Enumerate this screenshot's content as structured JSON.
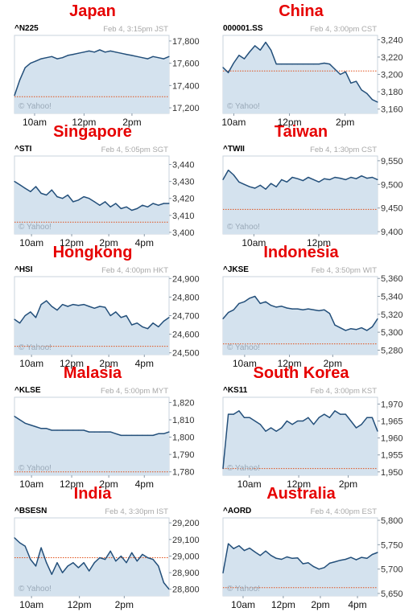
{
  "chart_data": [
    {
      "type": "area",
      "title": "Japan",
      "symbol": "^N225",
      "timestamp": "Feb 4, 3:15pm JST",
      "watermark": "© Yahoo!",
      "yticks": [
        "17,800",
        "17,600",
        "17,400",
        "17,200"
      ],
      "ytick_values": [
        17800,
        17600,
        17400,
        17200
      ],
      "ylim": [
        17150,
        17850
      ],
      "xticks": [
        "10am",
        "12pm",
        "2pm"
      ],
      "xtick_pos": [
        0.13,
        0.45,
        0.76
      ],
      "baseline": 17300,
      "y": [
        17310,
        17450,
        17560,
        17600,
        17620,
        17640,
        17650,
        17660,
        17640,
        17650,
        17670,
        17680,
        17690,
        17700,
        17710,
        17700,
        17720,
        17700,
        17710,
        17700,
        17690,
        17680,
        17670,
        17660,
        17650,
        17640,
        17660,
        17650,
        17640,
        17660
      ]
    },
    {
      "type": "area",
      "title": "China",
      "symbol": "000001.SS",
      "timestamp": "Feb 4, 3:00pm CST",
      "watermark": "© Yahoo!",
      "yticks": [
        "3,240",
        "3,220",
        "3,200",
        "3,180",
        "3,160"
      ],
      "ytick_values": [
        3240,
        3220,
        3200,
        3180,
        3160
      ],
      "ylim": [
        3155,
        3245
      ],
      "xticks": [
        "10am",
        "12pm",
        "2pm"
      ],
      "xtick_pos": [
        0.07,
        0.43,
        0.79
      ],
      "baseline": 3204,
      "y": [
        3208,
        3202,
        3213,
        3222,
        3218,
        3226,
        3233,
        3228,
        3237,
        3228,
        3212,
        3212,
        3212,
        3212,
        3212,
        3212,
        3212,
        3212,
        3212,
        3213,
        3212,
        3206,
        3200,
        3203,
        3190,
        3192,
        3182,
        3178,
        3171,
        3168
      ]
    },
    {
      "type": "area",
      "title": "Singapore",
      "symbol": "^STI",
      "timestamp": "Feb 4, 5:05pm SGT",
      "watermark": "© Yahoo!",
      "yticks": [
        "3,440",
        "3,430",
        "3,420",
        "3,410",
        "3,400"
      ],
      "ytick_values": [
        3440,
        3430,
        3420,
        3410,
        3400
      ],
      "ylim": [
        3399,
        3445
      ],
      "xticks": [
        "10am",
        "12pm",
        "2pm",
        "4pm"
      ],
      "xtick_pos": [
        0.11,
        0.37,
        0.61,
        0.84
      ],
      "baseline": 3406,
      "y": [
        3430,
        3428,
        3426,
        3424,
        3427,
        3423,
        3422,
        3425,
        3421,
        3420,
        3422,
        3418,
        3419,
        3421,
        3420,
        3418,
        3416,
        3418,
        3415,
        3417,
        3414,
        3415,
        3413,
        3414,
        3416,
        3415,
        3417,
        3416,
        3417,
        3417
      ]
    },
    {
      "type": "area",
      "title": "Taiwan",
      "symbol": "^TWII",
      "timestamp": "Feb 4, 1:30pm CST",
      "watermark": "© Yahoo!",
      "yticks": [
        "9,550",
        "9,500",
        "9,450",
        "9,400"
      ],
      "ytick_values": [
        9550,
        9500,
        9450,
        9400
      ],
      "ylim": [
        9395,
        9560
      ],
      "xticks": [
        "10am",
        "12pm"
      ],
      "xtick_pos": [
        0.2,
        0.62
      ],
      "baseline": 9447,
      "y": [
        9510,
        9530,
        9520,
        9505,
        9500,
        9495,
        9492,
        9498,
        9490,
        9502,
        9495,
        9510,
        9505,
        9515,
        9512,
        9508,
        9515,
        9510,
        9505,
        9512,
        9510,
        9515,
        9513,
        9510,
        9515,
        9512,
        9518,
        9513,
        9515,
        9510
      ]
    },
    {
      "type": "area",
      "title": "Hongkong",
      "symbol": "^HSI",
      "timestamp": "Feb 4, 4:00pm HKT",
      "watermark": "© Yahoo!",
      "yticks": [
        "24,900",
        "24,800",
        "24,700",
        "24,600",
        "24,500"
      ],
      "ytick_values": [
        24900,
        24800,
        24700,
        24600,
        24500
      ],
      "ylim": [
        24490,
        24910
      ],
      "xticks": [
        "10am",
        "12pm",
        "2pm",
        "4pm"
      ],
      "xtick_pos": [
        0.11,
        0.37,
        0.61,
        0.84
      ],
      "baseline": 24535,
      "y": [
        24680,
        24660,
        24700,
        24720,
        24690,
        24760,
        24780,
        24750,
        24730,
        24760,
        24750,
        24760,
        24755,
        24760,
        24750,
        24740,
        24750,
        24745,
        24700,
        24720,
        24690,
        24700,
        24650,
        24660,
        24640,
        24630,
        24660,
        24640,
        24670,
        24690
      ]
    },
    {
      "type": "area",
      "title": "Indonesia",
      "symbol": "^JKSE",
      "timestamp": "Feb 4, 3:50pm WIT",
      "watermark": "© Yahoo!",
      "yticks": [
        "5,360",
        "5,340",
        "5,320",
        "5,300",
        "5,280"
      ],
      "ytick_values": [
        5360,
        5340,
        5320,
        5300,
        5280
      ],
      "ylim": [
        5275,
        5362
      ],
      "xticks": [
        "10am",
        "12pm",
        "2pm"
      ],
      "xtick_pos": [
        0.14,
        0.43,
        0.71
      ],
      "baseline": 5287,
      "y": [
        5315,
        5322,
        5325,
        5332,
        5334,
        5338,
        5340,
        5332,
        5334,
        5330,
        5328,
        5329,
        5327,
        5326,
        5326,
        5325,
        5326,
        5325,
        5324,
        5325,
        5321,
        5308,
        5305,
        5302,
        5304,
        5303,
        5305,
        5302,
        5306,
        5315
      ]
    },
    {
      "type": "area",
      "title": "Malasia",
      "symbol": "^KLSE",
      "timestamp": "Feb 4, 5:00pm MYT",
      "watermark": "© Yahoo!",
      "yticks": [
        "1,820",
        "1,810",
        "1,800",
        "1,790",
        "1,780"
      ],
      "ytick_values": [
        1820,
        1810,
        1800,
        1790,
        1780
      ],
      "ylim": [
        1778,
        1823
      ],
      "xticks": [
        "10am",
        "12pm",
        "2pm",
        "4pm"
      ],
      "xtick_pos": [
        0.11,
        0.37,
        0.61,
        0.84
      ],
      "baseline": 1780,
      "y": [
        1812,
        1810,
        1808,
        1807,
        1806,
        1805,
        1805,
        1804,
        1804,
        1804,
        1804,
        1804,
        1804,
        1804,
        1803,
        1803,
        1803,
        1803,
        1803,
        1802,
        1801,
        1801,
        1801,
        1801,
        1801,
        1801,
        1801,
        1802,
        1802,
        1803
      ]
    },
    {
      "type": "area",
      "title": "South Korea",
      "symbol": "^KS11",
      "timestamp": "Feb 4, 3:00pm KST",
      "watermark": "© Yahoo!",
      "yticks": [
        "1,970",
        "1,965",
        "1,960",
        "1,955",
        "1,950"
      ],
      "ytick_values": [
        1970,
        1965,
        1960,
        1955,
        1950
      ],
      "ylim": [
        1949,
        1972
      ],
      "xticks": [
        "10am",
        "12pm",
        "2pm"
      ],
      "xtick_pos": [
        0.17,
        0.49,
        0.81
      ],
      "baseline": 1951,
      "y": [
        1951,
        1967,
        1967,
        1968,
        1966,
        1966,
        1965,
        1964,
        1962,
        1963,
        1962,
        1963,
        1965,
        1964,
        1965,
        1965,
        1966,
        1964,
        1966,
        1967,
        1966,
        1968,
        1967,
        1967,
        1965,
        1963,
        1964,
        1966,
        1966,
        1962
      ]
    },
    {
      "type": "area",
      "title": "India",
      "symbol": "^BSESN",
      "timestamp": "Feb 4, 3:30pm IST",
      "watermark": "© Yahoo!",
      "yticks": [
        "29,200",
        "29,100",
        "29,000",
        "28,900",
        "28,800"
      ],
      "ytick_values": [
        29200,
        29100,
        29000,
        28900,
        28800
      ],
      "ylim": [
        28760,
        29230
      ],
      "xticks": [
        "10am",
        "12pm",
        "2pm"
      ],
      "xtick_pos": [
        0.11,
        0.42,
        0.71
      ],
      "baseline": 28990,
      "y": [
        29110,
        29080,
        29060,
        28980,
        28940,
        29050,
        28960,
        28890,
        28960,
        28900,
        28940,
        28960,
        28930,
        28960,
        28910,
        28960,
        28990,
        28980,
        29030,
        28970,
        29000,
        28960,
        29020,
        28970,
        29010,
        28990,
        28980,
        28940,
        28840,
        28800
      ]
    },
    {
      "type": "area",
      "title": "Australia",
      "symbol": "^AORD",
      "timestamp": "Feb 4, 4:00pm EST",
      "watermark": "© Yahoo!",
      "yticks": [
        "5,800",
        "5,750",
        "5,700",
        "5,650"
      ],
      "ytick_values": [
        5800,
        5750,
        5700,
        5650
      ],
      "ylim": [
        5645,
        5805
      ],
      "xticks": [
        "10am",
        "12pm",
        "2pm",
        "4pm"
      ],
      "xtick_pos": [
        0.13,
        0.39,
        0.63,
        0.87
      ],
      "baseline": 5662,
      "y": [
        5692,
        5752,
        5742,
        5748,
        5738,
        5743,
        5735,
        5728,
        5737,
        5728,
        5722,
        5720,
        5725,
        5722,
        5723,
        5711,
        5713,
        5705,
        5700,
        5703,
        5712,
        5715,
        5718,
        5720,
        5724,
        5719,
        5724,
        5722,
        5730,
        5734
      ]
    }
  ]
}
